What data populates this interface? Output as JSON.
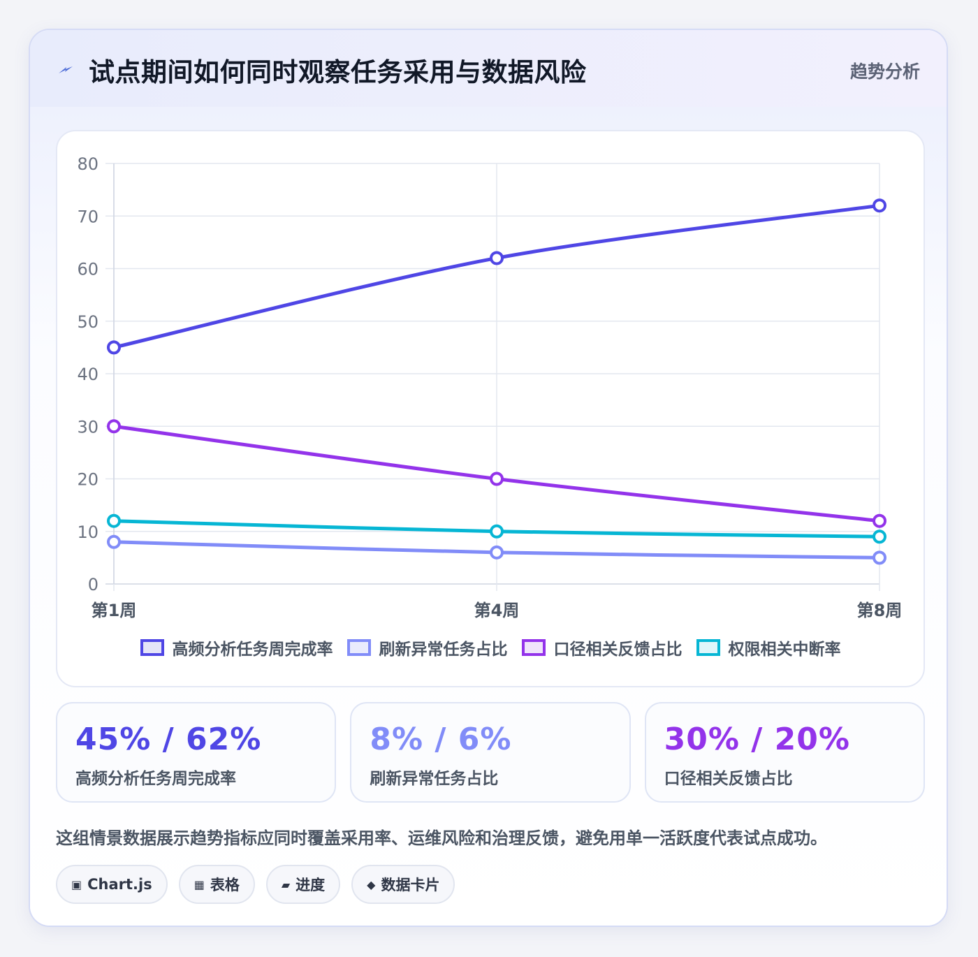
{
  "header": {
    "title": "试点期间如何同时观察任务采用与数据风险",
    "tag": "趋势分析",
    "icon": "lightning-icon"
  },
  "chart_data": {
    "type": "line",
    "categories": [
      "第1周",
      "第4周",
      "第8周"
    ],
    "ylim": [
      0,
      80
    ],
    "yticks": [
      0,
      10,
      20,
      30,
      40,
      50,
      60,
      70,
      80
    ],
    "grid": true,
    "legend_position": "bottom",
    "series": [
      {
        "name": "高频分析任务周完成率",
        "values": [
          45,
          62,
          72
        ],
        "color": "#4f46e5",
        "fill": "#e5e4f8"
      },
      {
        "name": "刷新异常任务占比",
        "values": [
          8,
          6,
          5
        ],
        "color": "#818cf8",
        "fill": "#e9ebfd"
      },
      {
        "name": "口径相关反馈占比",
        "values": [
          30,
          20,
          12
        ],
        "color": "#9333ea",
        "fill": "#f0e4fb"
      },
      {
        "name": "权限相关中断率",
        "values": [
          12,
          10,
          9
        ],
        "color": "#06b6d4",
        "fill": "#dff6fa"
      }
    ]
  },
  "stats": [
    {
      "value": "45% / 62%",
      "label": "高频分析任务周完成率",
      "color": "#4f46e5"
    },
    {
      "value": "8% / 6%",
      "label": "刷新异常任务占比",
      "color": "#818cf8"
    },
    {
      "value": "30% / 20%",
      "label": "口径相关反馈占比",
      "color": "#9333ea"
    }
  ],
  "note": "这组情景数据展示趋势指标应同时覆盖采用率、运维风险和治理反馈，避免用单一活跃度代表试点成功。",
  "chips": [
    {
      "icon": "▣",
      "label": "Chart.js"
    },
    {
      "icon": "▦",
      "label": "表格"
    },
    {
      "icon": "▰",
      "label": "进度"
    },
    {
      "icon": "◆",
      "label": "数据卡片"
    }
  ]
}
